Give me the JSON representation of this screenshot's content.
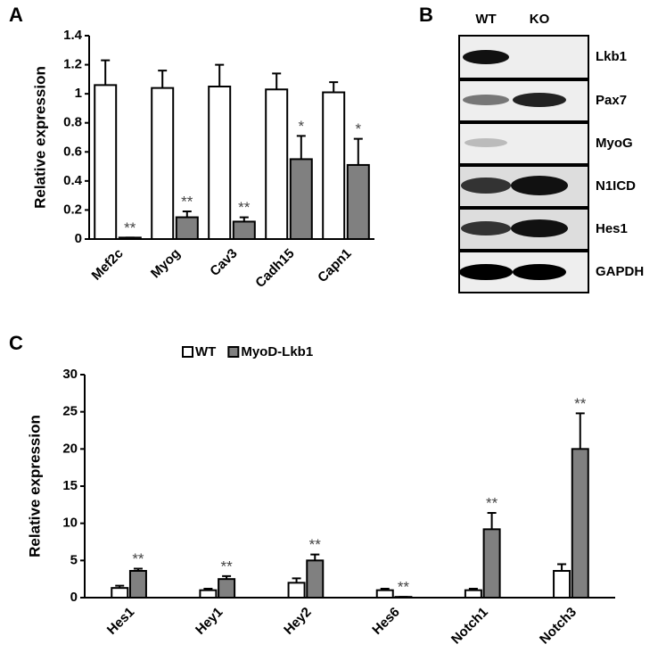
{
  "chart_data": [
    {
      "type": "bar",
      "panel": "A",
      "ylabel": "Relative expression",
      "categories": [
        "Mef2c",
        "Myog",
        "Cav3",
        "Cadh15",
        "Capn1"
      ],
      "series": [
        {
          "color": "#ffffff",
          "values": [
            1.06,
            1.04,
            1.05,
            1.03,
            1.01
          ],
          "errors": [
            0.17,
            0.12,
            0.15,
            0.11,
            0.07
          ]
        },
        {
          "color": "#808080",
          "values": [
            0.01,
            0.15,
            0.12,
            0.55,
            0.51
          ],
          "errors": [
            0.0,
            0.04,
            0.03,
            0.16,
            0.18
          ]
        }
      ],
      "annotations": [
        "**",
        "**",
        "**",
        "*",
        "*"
      ],
      "ylim": [
        0,
        1.4
      ],
      "yticks": [
        0,
        0.2,
        0.4,
        0.6,
        0.8,
        1,
        1.2,
        1.4
      ]
    },
    {
      "type": "bar",
      "panel": "C",
      "ylabel": "Relative expression",
      "categories": [
        "Hes1",
        "Hey1",
        "Hey2",
        "Hes6",
        "Notch1",
        "Notch3"
      ],
      "series": [
        {
          "name": "WT",
          "color": "#ffffff",
          "values": [
            1.3,
            1.0,
            2.0,
            1.0,
            1.0,
            3.6
          ],
          "errors": [
            0.3,
            0.2,
            0.6,
            0.2,
            0.2,
            0.9
          ]
        },
        {
          "name": "MyoD-Lkb1",
          "color": "#808080",
          "values": [
            3.6,
            2.5,
            5.0,
            0.1,
            9.2,
            20.0
          ],
          "errors": [
            0.3,
            0.4,
            0.8,
            0.0,
            2.2,
            4.8
          ]
        }
      ],
      "annotations": [
        "**",
        "**",
        "**",
        "**",
        "**",
        "**"
      ],
      "ylim": [
        0,
        30
      ],
      "yticks": [
        0,
        5,
        10,
        15,
        20,
        25,
        30
      ]
    }
  ],
  "blot": {
    "panel": "B",
    "columns": [
      "WT",
      "KO"
    ],
    "rows": [
      "Lkb1",
      "Pax7",
      "MyoG",
      "N1ICD",
      "Hes1",
      "GAPDH"
    ]
  }
}
